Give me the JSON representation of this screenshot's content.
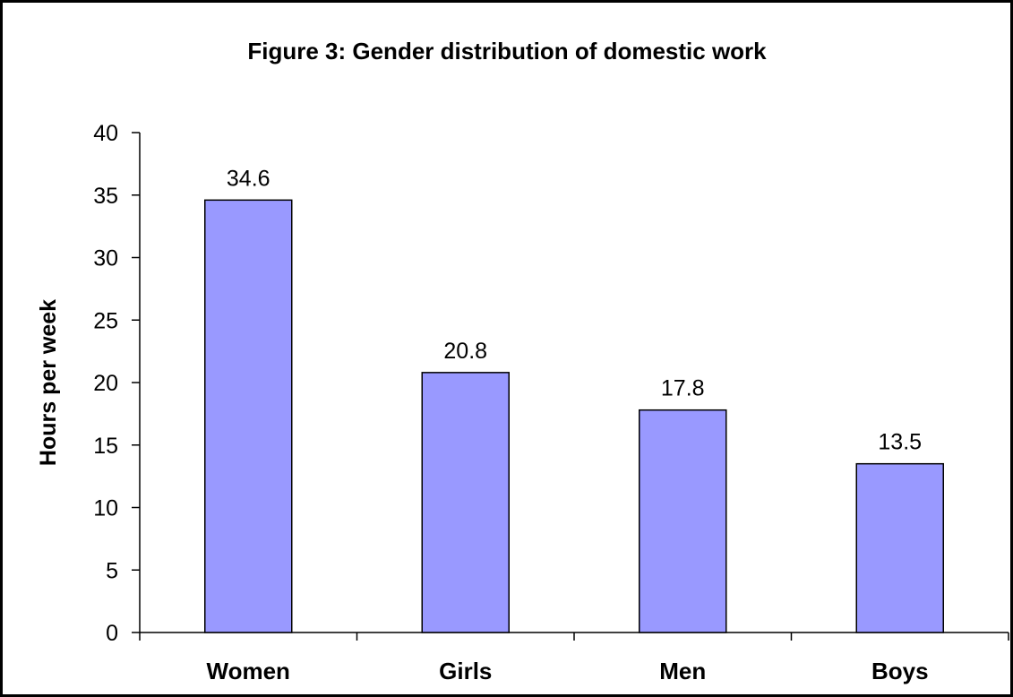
{
  "chart_data": {
    "type": "bar",
    "title": "Figure 3: Gender distribution of domestic work",
    "xlabel": "",
    "ylabel": "Hours per week",
    "categories": [
      "Women",
      "Girls",
      "Men",
      "Boys"
    ],
    "values": [
      34.6,
      20.8,
      17.8,
      13.5
    ],
    "data_labels": [
      "34.6",
      "20.8",
      "17.8",
      "13.5"
    ],
    "ylim": [
      0,
      40
    ],
    "yticks": [
      0,
      5,
      10,
      15,
      20,
      25,
      30,
      35,
      40
    ],
    "grid": false,
    "legend": "none",
    "bar_color": "#9999ff",
    "bar_edge_color": "#000000"
  }
}
